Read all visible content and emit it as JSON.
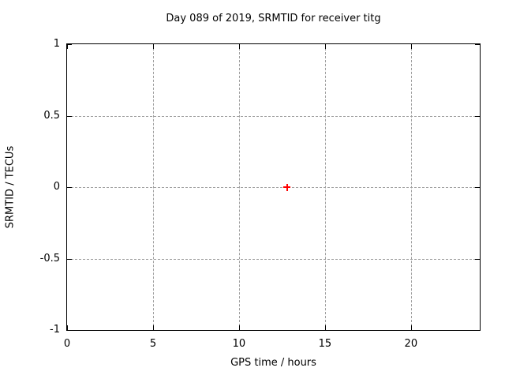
{
  "chart_data": {
    "type": "scatter",
    "title": "Day 089 of 2019, SRMTID for receiver titg",
    "xlabel": "GPS time / hours",
    "ylabel": "SRMTID / TECUs",
    "xlim": [
      0,
      24
    ],
    "ylim": [
      -1,
      1
    ],
    "grid": true,
    "legend": "none",
    "grid_color": "#9f9f9f",
    "axis_color": "#000000",
    "background_color": "#ffffff",
    "xticks": [
      {
        "v": 0,
        "label": "0"
      },
      {
        "v": 5,
        "label": "5"
      },
      {
        "v": 10,
        "label": "10"
      },
      {
        "v": 15,
        "label": "15"
      },
      {
        "v": 20,
        "label": "20"
      }
    ],
    "yticks": [
      {
        "v": 1,
        "label": "1"
      },
      {
        "v": 0.5,
        "label": "0.5"
      },
      {
        "v": 0,
        "label": "0"
      },
      {
        "v": -0.5,
        "label": "-0.5"
      },
      {
        "v": -1,
        "label": "-1"
      }
    ],
    "series": [
      {
        "name": "SRMTID",
        "marker": "plus",
        "color": "#ff0000",
        "points": [
          {
            "x": 12.8,
            "y": 0
          }
        ]
      }
    ]
  }
}
